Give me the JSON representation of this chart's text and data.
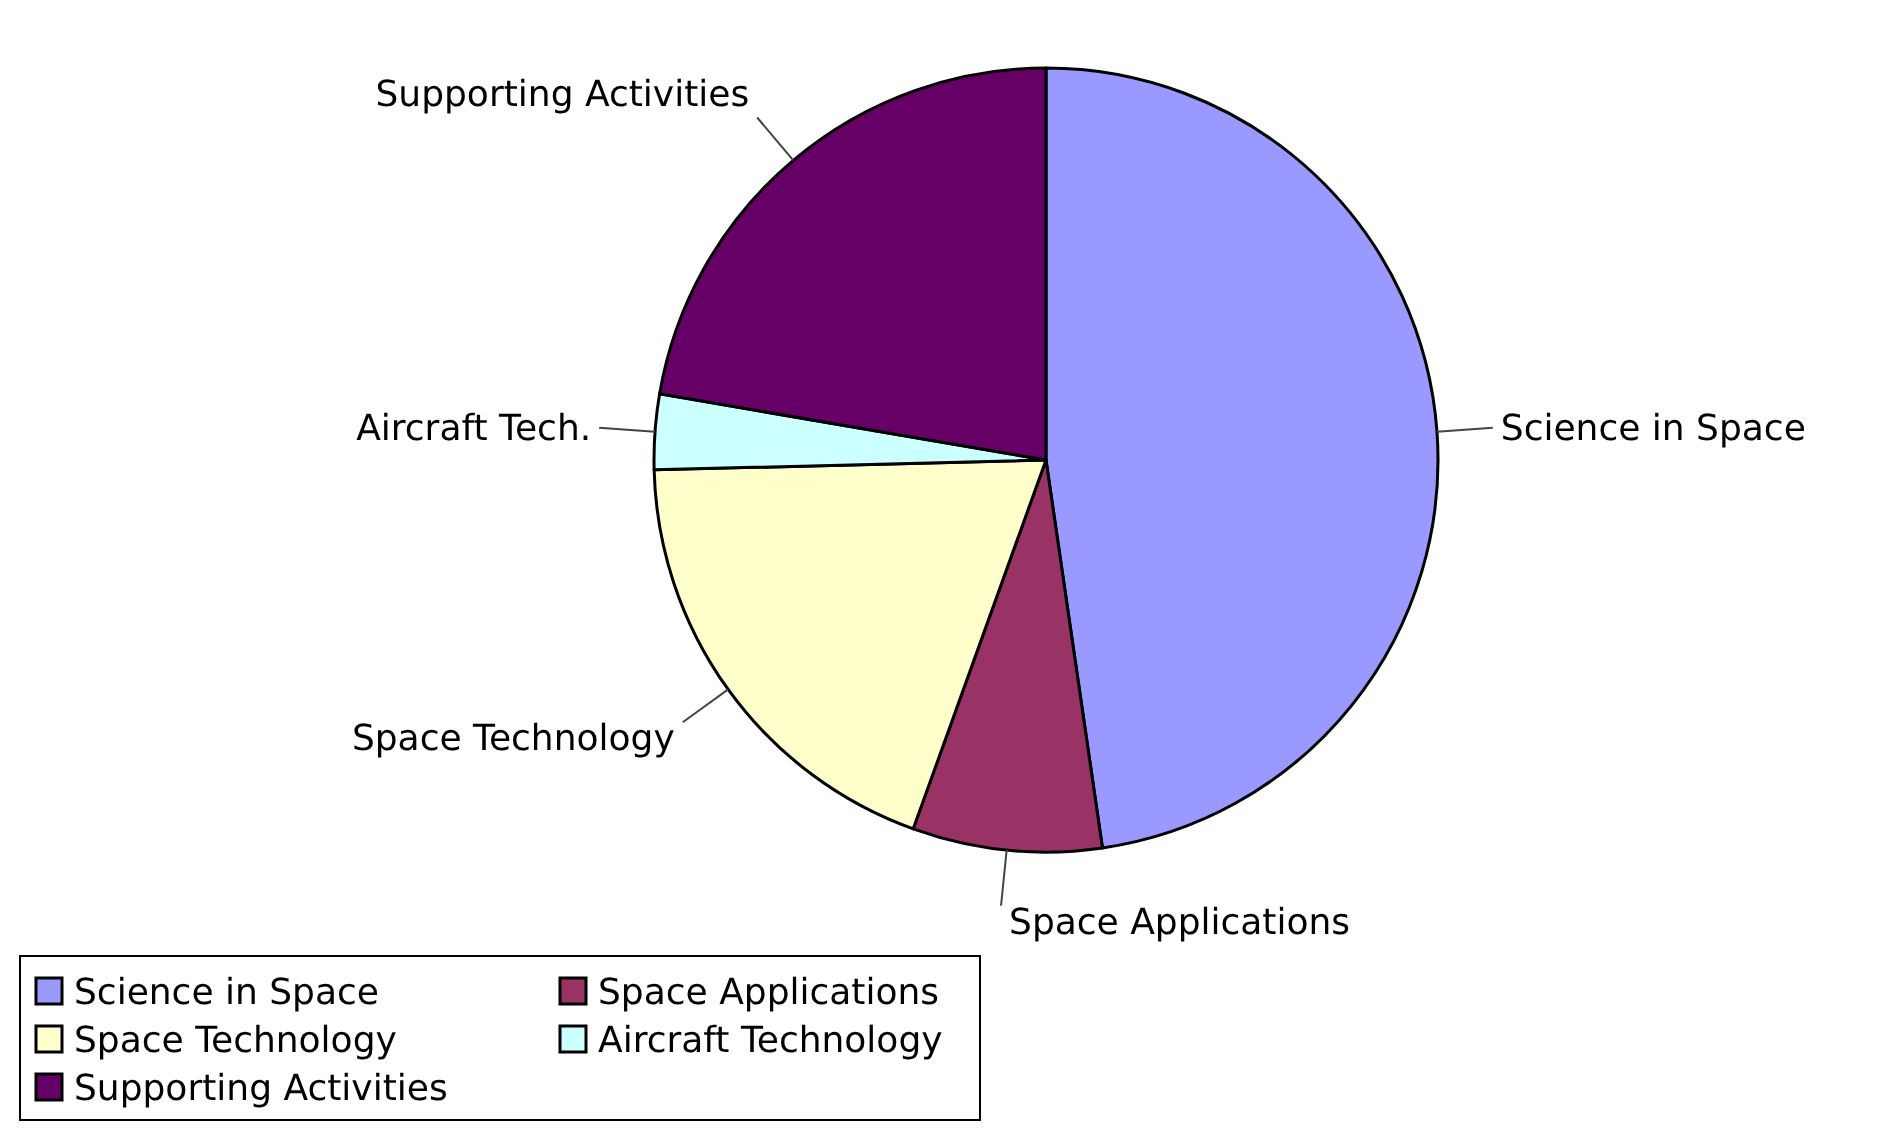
{
  "chart_data": {
    "type": "pie",
    "categories": [
      "Science in Space",
      "Space Applications",
      "Space Technology",
      "Aircraft Technology",
      "Supporting Activities"
    ],
    "values": [
      47.7,
      7.8,
      19.1,
      3.1,
      22.3
    ],
    "colors": [
      "#9999ff",
      "#993366",
      "#ffffcc",
      "#ccffff",
      "#660066"
    ],
    "annotations": [
      {
        "text": "Science in Space",
        "x": "Science in Space"
      },
      {
        "text": "Space Applications",
        "x": "Space Applications"
      },
      {
        "text": "Space Technology",
        "x": "Space Technology"
      },
      {
        "text": "Aircraft Tech.",
        "x": "Aircraft Technology"
      },
      {
        "text": "Supporting Activities",
        "x": "Supporting Activities"
      }
    ],
    "legend": "bottom left"
  }
}
